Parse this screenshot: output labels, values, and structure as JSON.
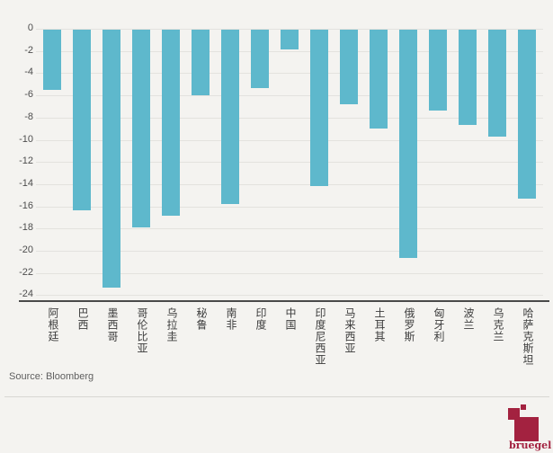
{
  "chart_data": {
    "type": "bar",
    "categories": [
      "阿根廷",
      "巴西",
      "墨西哥",
      "哥伦比亚",
      "乌拉圭",
      "秘鲁",
      "南非",
      "印度",
      "中国",
      "印度尼西亚",
      "马来西亚",
      "土耳其",
      "俄罗斯",
      "匈牙利",
      "波兰",
      "乌克兰",
      "哈萨克斯坦"
    ],
    "values": [
      -5.4,
      -16.3,
      -23.2,
      -17.8,
      -16.8,
      -5.9,
      -15.7,
      -5.3,
      -1.8,
      -14.1,
      -6.7,
      -8.9,
      -20.6,
      -7.3,
      -8.6,
      -9.6,
      -15.2
    ],
    "ylim": [
      -24,
      0
    ],
    "yticks": [
      0,
      -2,
      -4,
      -6,
      -8,
      -10,
      -12,
      -14,
      -16,
      -18,
      -20,
      -22,
      -24
    ],
    "grid": true,
    "legend": false,
    "bar_color": "#5eb8cc",
    "xlabel": "",
    "ylabel": ""
  },
  "source": {
    "label": "Source: Bloomberg"
  },
  "branding": {
    "wordmark": "bruegel",
    "color": "#a32240"
  }
}
